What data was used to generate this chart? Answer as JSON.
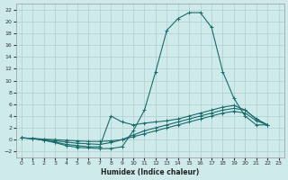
{
  "xlabel": "Humidex (Indice chaleur)",
  "xlim": [
    -0.5,
    23.5
  ],
  "ylim": [
    -3,
    23
  ],
  "xticks": [
    0,
    1,
    2,
    3,
    4,
    5,
    6,
    7,
    8,
    9,
    10,
    11,
    12,
    13,
    14,
    15,
    16,
    17,
    18,
    19,
    20,
    21,
    22,
    23
  ],
  "yticks": [
    -2,
    0,
    2,
    4,
    6,
    8,
    10,
    12,
    14,
    16,
    18,
    20,
    22
  ],
  "bg_color": "#ceeaea",
  "grid_color": "#b0cece",
  "line_color": "#1a6b6b",
  "curve1_x": [
    0,
    1,
    2,
    3,
    4,
    5,
    6,
    7,
    8,
    9,
    10,
    11,
    12,
    13,
    14,
    15,
    16,
    17,
    18,
    19,
    20,
    21,
    22
  ],
  "curve1_y": [
    0.3,
    0.2,
    -0.1,
    -0.5,
    -1.0,
    -1.3,
    -1.4,
    -1.5,
    -1.5,
    -1.2,
    1.5,
    5.0,
    11.5,
    18.5,
    20.5,
    21.5,
    21.5,
    19.0,
    11.5,
    7.0,
    4.0,
    2.5,
    2.5
  ],
  "curve2_x": [
    0,
    1,
    2,
    3,
    4,
    5,
    6,
    7,
    8,
    9,
    10,
    11,
    12,
    13,
    14,
    15,
    16,
    17,
    18,
    19,
    20,
    21,
    22
  ],
  "curve2_y": [
    0.3,
    0.2,
    -0.1,
    -0.4,
    -0.8,
    -1.0,
    -1.2,
    -1.2,
    4.0,
    3.0,
    2.5,
    2.8,
    3.0,
    3.2,
    3.5,
    4.0,
    4.5,
    5.0,
    5.5,
    5.8,
    5.0,
    3.5,
    2.5
  ],
  "curve3_x": [
    0,
    1,
    2,
    3,
    4,
    5,
    6,
    7,
    8,
    9,
    10,
    11,
    12,
    13,
    14,
    15,
    16,
    17,
    18,
    19,
    20,
    21,
    22
  ],
  "curve3_y": [
    0.3,
    0.2,
    0.0,
    -0.2,
    -0.4,
    -0.6,
    -0.7,
    -0.8,
    -0.5,
    0.0,
    0.8,
    1.5,
    2.0,
    2.5,
    3.0,
    3.5,
    4.0,
    4.5,
    5.0,
    5.3,
    5.0,
    3.5,
    2.5
  ],
  "curve4_x": [
    0,
    1,
    2,
    3,
    4,
    5,
    6,
    7,
    8,
    9,
    10,
    11,
    12,
    13,
    14,
    15,
    16,
    17,
    18,
    19,
    20,
    21,
    22
  ],
  "curve4_y": [
    0.3,
    0.2,
    0.1,
    0.0,
    -0.1,
    -0.2,
    -0.3,
    -0.3,
    -0.2,
    0.0,
    0.5,
    1.0,
    1.5,
    2.0,
    2.5,
    3.0,
    3.5,
    4.0,
    4.5,
    4.8,
    4.5,
    3.2,
    2.5
  ]
}
